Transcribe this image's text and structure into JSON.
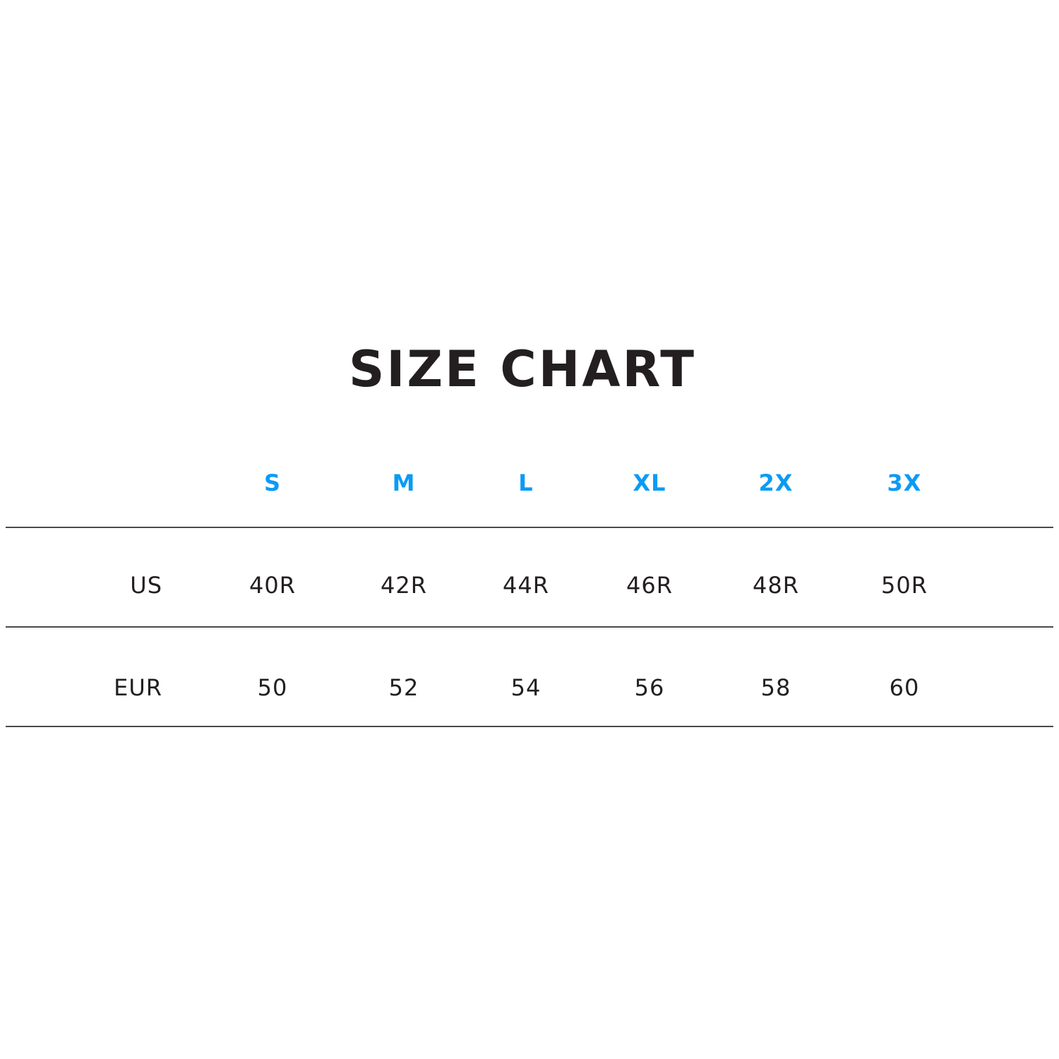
{
  "title": "SIZE CHART",
  "accent_color": "#0a9bf5",
  "table": {
    "headers": [
      "S",
      "M",
      "L",
      "XL",
      "2X",
      "3X"
    ],
    "rows": [
      {
        "label": "US",
        "values": [
          "40R",
          "42R",
          "44R",
          "46R",
          "48R",
          "50R"
        ]
      },
      {
        "label": "EUR",
        "values": [
          "50",
          "52",
          "54",
          "56",
          "58",
          "60"
        ]
      }
    ]
  }
}
